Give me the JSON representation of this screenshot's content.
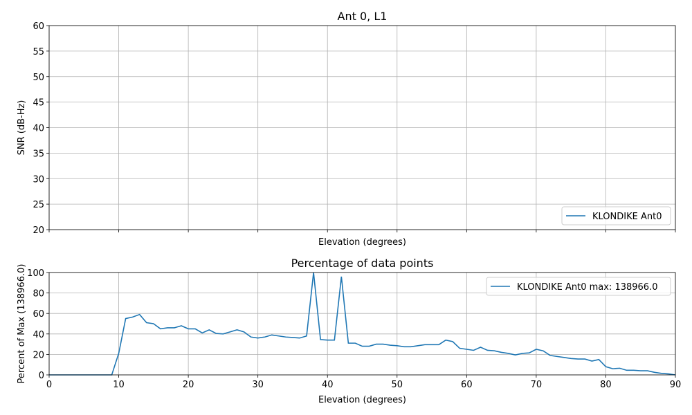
{
  "chart_data": [
    {
      "type": "line",
      "title": "Ant 0, L1",
      "xlabel": "Elevation (degrees)",
      "ylabel": "SNR (dB-Hz)",
      "xlim": [
        0,
        90
      ],
      "ylim": [
        20,
        60
      ],
      "xticks": [
        0,
        10,
        20,
        30,
        40,
        50,
        60,
        70,
        80,
        90
      ],
      "yticks": [
        20,
        25,
        30,
        35,
        40,
        45,
        50,
        55,
        60
      ],
      "grid": true,
      "legend": {
        "placement": "lower-right",
        "entries": [
          "KLONDIKE Ant0"
        ]
      },
      "series": [
        {
          "name": "KLONDIKE Ant0",
          "color": "#1f77b4",
          "x": [],
          "y": []
        }
      ]
    },
    {
      "type": "line",
      "title": "Percentage of data points",
      "xlabel": "Elevation (degrees)",
      "ylabel": "Percent of Max (138966.0)",
      "xlim": [
        0,
        90
      ],
      "ylim": [
        0,
        100
      ],
      "xticks": [
        0,
        10,
        20,
        30,
        40,
        50,
        60,
        70,
        80,
        90
      ],
      "yticks": [
        0,
        20,
        40,
        60,
        80,
        100
      ],
      "grid": true,
      "legend": {
        "placement": "upper-right",
        "entries": [
          "KLONDIKE Ant0 max: 138966.0"
        ]
      },
      "series": [
        {
          "name": "KLONDIKE Ant0 max: 138966.0",
          "color": "#1f77b4",
          "x": [
            0,
            1,
            2,
            3,
            4,
            5,
            6,
            7,
            8,
            9,
            10,
            11,
            12,
            13,
            14,
            15,
            16,
            17,
            18,
            19,
            20,
            21,
            22,
            23,
            24,
            25,
            26,
            27,
            28,
            29,
            30,
            31,
            32,
            33,
            34,
            35,
            36,
            37,
            38,
            39,
            40,
            41,
            42,
            43,
            44,
            45,
            46,
            47,
            48,
            49,
            50,
            51,
            52,
            53,
            54,
            55,
            56,
            57,
            58,
            59,
            60,
            61,
            62,
            63,
            64,
            65,
            66,
            67,
            68,
            69,
            70,
            71,
            72,
            73,
            74,
            75,
            76,
            77,
            78,
            79,
            80,
            81,
            82,
            83,
            84,
            85,
            86,
            87,
            88,
            89,
            90
          ],
          "y": [
            0,
            0,
            0,
            0,
            0,
            0,
            0,
            0,
            0,
            0,
            21,
            55,
            56.5,
            59,
            51,
            50,
            45,
            46,
            46,
            48,
            45,
            45,
            41,
            44,
            40.5,
            40,
            42,
            44,
            42,
            37,
            36,
            37,
            39,
            38,
            37,
            36.5,
            36,
            38,
            100,
            34.5,
            34,
            34,
            96,
            31,
            31,
            28,
            28,
            30,
            30,
            29,
            28.5,
            27.5,
            27.5,
            28.5,
            29.5,
            29.5,
            29.5,
            34,
            32.5,
            26,
            25,
            24,
            27,
            24,
            23.5,
            22,
            21,
            19.5,
            21,
            21.5,
            25,
            23.5,
            19,
            18,
            17,
            16,
            15.5,
            15.5,
            13.5,
            15,
            8,
            6,
            6.5,
            4.5,
            4.5,
            4,
            4,
            2.5,
            1.5,
            1,
            0
          ]
        }
      ]
    }
  ]
}
